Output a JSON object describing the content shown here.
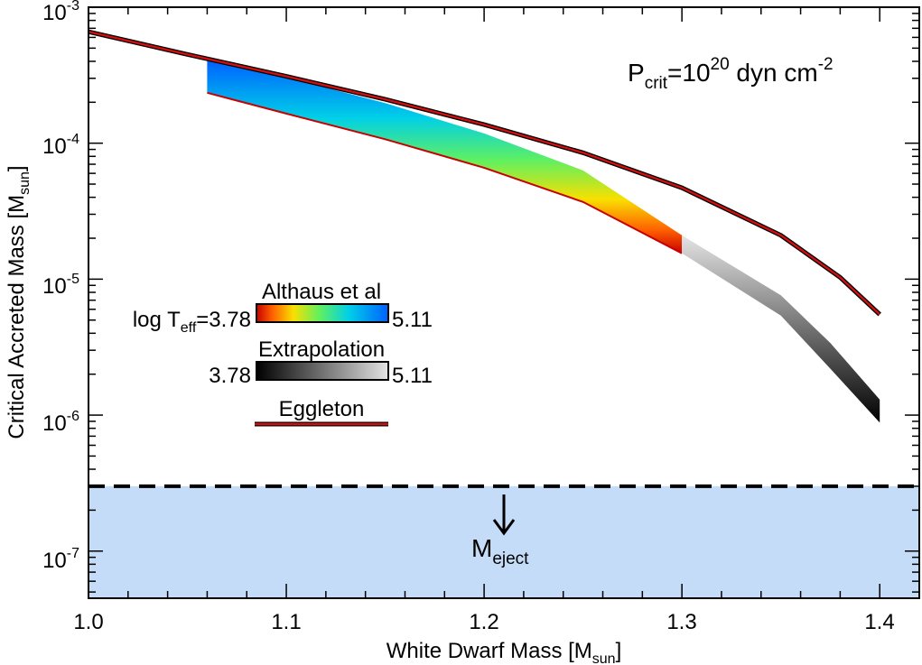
{
  "chart_data": {
    "type": "line",
    "x_axis": {
      "label": "White Dwarf Mass",
      "label_sub": "sun",
      "range": [
        1.0,
        1.42
      ],
      "ticks": [
        1.0,
        1.1,
        1.2,
        1.3,
        1.4
      ],
      "tick_labels": [
        "1.0",
        "1.1",
        "1.2",
        "1.3",
        "1.4"
      ]
    },
    "y_axis": {
      "label": "Critical Accreted Mass",
      "label_sub": "sun",
      "scale": "log",
      "range": [
        4.5e-08,
        0.001
      ],
      "major_ticks": [
        1e-07,
        1e-06,
        1e-05,
        0.0001,
        0.001
      ],
      "tick_base": "10",
      "tick_exponents": [
        "-7",
        "-6",
        "-5",
        "-4",
        "-3"
      ]
    },
    "annotation": {
      "p_text": "P",
      "p_sub": "crit",
      "p_eq": "=10",
      "p_exp": "20",
      "p_unit": " dyn cm",
      "p_unit_exp": "-2"
    },
    "ejection": {
      "value": 3e-07,
      "label": "M",
      "label_sub": "eject",
      "fill_color": "#c4dcf7"
    },
    "series": [
      {
        "name": "Eggleton",
        "line_color": "#d01010",
        "x": [
          1.0,
          1.05,
          1.1,
          1.15,
          1.2,
          1.25,
          1.3,
          1.35,
          1.38,
          1.4
        ],
        "y": [
          0.00066,
          0.00045,
          0.00031,
          0.00021,
          0.000137,
          8.5e-05,
          4.7e-05,
          2.1e-05,
          1.03e-05,
          5.5e-06
        ]
      },
      {
        "name": "Althaus et al",
        "x": [
          1.06,
          1.1,
          1.15,
          1.2,
          1.25,
          1.3
        ],
        "y_low": [
          0.000235,
          0.000165,
          0.000107,
          6.6e-05,
          3.7e-05,
          1.55e-05
        ],
        "y_high": [
          0.00041,
          0.000305,
          0.000197,
          0.000118,
          6.3e-05,
          2.1e-05
        ],
        "teff_range": [
          "3.78",
          "5.11"
        ],
        "colors": [
          "#c80000",
          "#ff6000",
          "#f8e000",
          "#60f060",
          "#00d0e8",
          "#0060ff"
        ]
      },
      {
        "name": "Extrapolation",
        "x": [
          1.3,
          1.35,
          1.375,
          1.4
        ],
        "y_low": [
          1.55e-05,
          5.4e-06,
          2.2e-06,
          8.8e-07
        ],
        "y_high": [
          2.1e-05,
          7.6e-06,
          3.4e-06,
          1.3e-06
        ],
        "teff_range": [
          "3.78",
          "5.11"
        ],
        "colors": [
          "#000000",
          "#e4e4e4"
        ]
      }
    ],
    "legend": {
      "althaus_label": "Althaus et al",
      "log_label": "log T",
      "log_sub": "eff",
      "log_eq": "=3.78",
      "althaus_max": "5.11",
      "extrap_label": "Extrapolation",
      "extrap_min": "3.78",
      "extrap_max": "5.11",
      "eggleton_label": "Eggleton"
    }
  }
}
